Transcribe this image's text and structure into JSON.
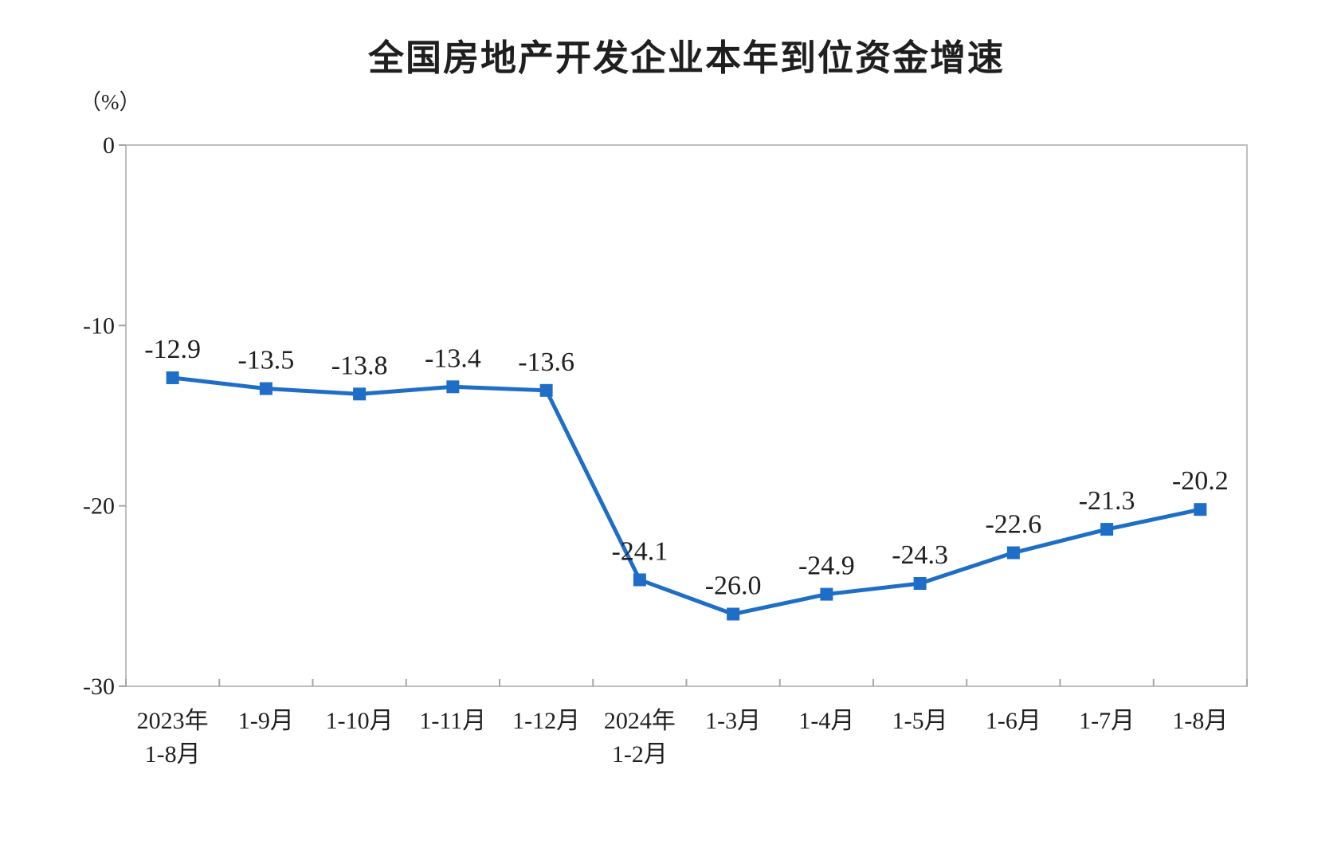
{
  "chart": {
    "title": "全国房地产开发企业本年到位资金增速",
    "unit_label": "（%）"
  },
  "chart_data": {
    "type": "line",
    "title": "全国房地产开发企业本年到位资金增速",
    "ylabel": "（%）",
    "categories": [
      [
        "2023年",
        "1-8月"
      ],
      [
        "1-9月"
      ],
      [
        "1-10月"
      ],
      [
        "1-11月"
      ],
      [
        "1-12月"
      ],
      [
        "2024年",
        "1-2月"
      ],
      [
        "1-3月"
      ],
      [
        "1-4月"
      ],
      [
        "1-5月"
      ],
      [
        "1-6月"
      ],
      [
        "1-7月"
      ],
      [
        "1-8月"
      ]
    ],
    "values": [
      -12.9,
      -13.5,
      -13.8,
      -13.4,
      -13.6,
      -24.1,
      -26.0,
      -24.9,
      -24.3,
      -22.6,
      -21.3,
      -20.2
    ],
    "data_labels": [
      "-12.9",
      "-13.5",
      "-13.8",
      "-13.4",
      "-13.6",
      "-24.1",
      "-26.0",
      "-24.9",
      "-24.3",
      "-22.6",
      "-21.3",
      "-20.2"
    ],
    "ylim": [
      -30,
      0
    ],
    "yticks": [
      0,
      -10,
      -20,
      -30
    ],
    "grid": false,
    "legend_position": "none",
    "marker": "square",
    "colors": {
      "line": "#1E6EC8",
      "marker": "#1E6EC8",
      "plot_border": "#BFBFBF",
      "tick": "#A6A6A6",
      "text": "#1F1F1F"
    }
  }
}
